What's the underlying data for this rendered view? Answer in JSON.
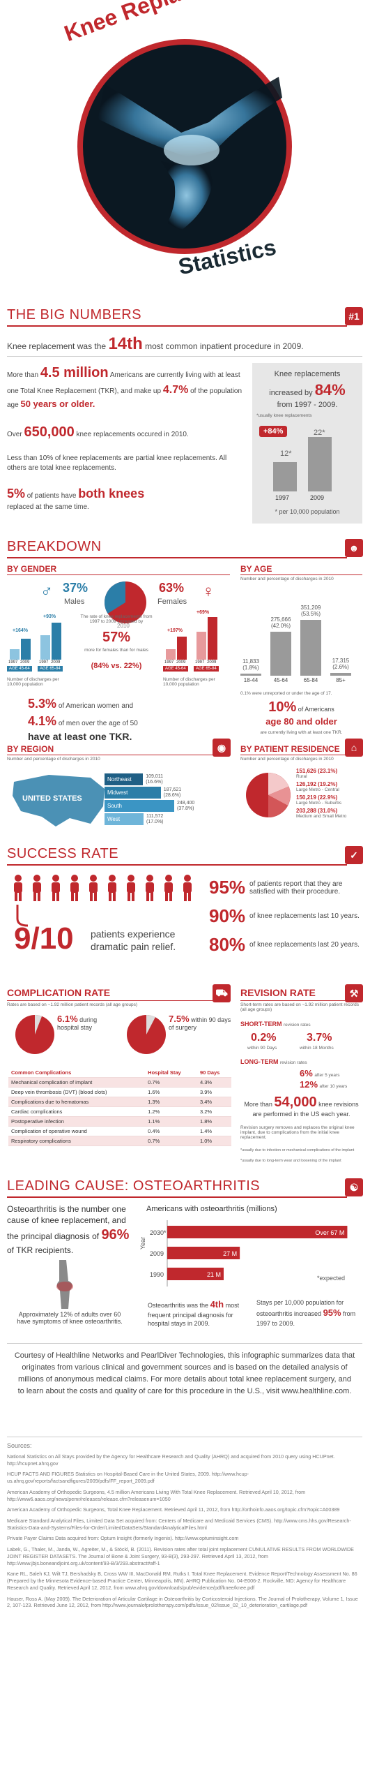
{
  "header": {
    "title_top": "Knee Replacement",
    "title_bottom": "Statistics"
  },
  "big_numbers": {
    "section_title": "THE BIG NUMBERS",
    "badge": "#1",
    "rank_pre": "Knee replacement was the",
    "rank_value": "14th",
    "rank_post": "most common inpatient procedure in 2009.",
    "more_than": "More than",
    "million": "4.5 million",
    "million_text": "Americans are currently living with at least one Total Knee Replacement (TKR), and make up",
    "pct": "4.7%",
    "pct_text": "of the population age",
    "age": "50 years or older.",
    "over": "Over",
    "over_value": "650,000",
    "over_text": "knee replacements occured in 2010.",
    "partial_text": "Less than 10% of knee replacements are partial knee replacements. All others are total knee replacements.",
    "both_pct": "5%",
    "both_mid": "of patients have",
    "both_big": "both knees",
    "both_post": "replaced at the same time.",
    "box_line1": "Knee replacements",
    "box_line2": "increased by",
    "box_pct": "84%",
    "box_line3": "from 1997 - 2009.",
    "box_note": "*usually knee replacements",
    "box_increase": "+84%",
    "box_val1": "12*",
    "box_val2": "22*",
    "box_year1": "1997",
    "box_year2": "2009",
    "box_caption": "* per 10,000 population"
  },
  "breakdown": {
    "section_title": "BREAKDOWN",
    "by_gender": "BY GENDER",
    "males_pct": "37%",
    "males": "Males",
    "females_pct": "63%",
    "females": "Females",
    "pie_year": "2010",
    "male_bars_pct1": "+164%",
    "male_bars_pct2": "+93%",
    "male_ages": [
      "AGE 45-64",
      "AGE 65-84"
    ],
    "male_years": [
      "1997",
      "2009",
      "1997",
      "2009"
    ],
    "female_bars_pct1": "+197%",
    "female_bars_pct2": "+69%",
    "female_ages": [
      "AGE 45-64",
      "AGE 65-84"
    ],
    "female_years": [
      "1997",
      "2009",
      "1997",
      "2009"
    ],
    "discharge_note": "Number of discharges per 10,000 population",
    "rate_text": "The rate of knee replacements from 1997 to 2009 increased by",
    "rate_pct": "57%",
    "rate_more": "more for females than for males",
    "rate_compare": "(84% vs. 22%)",
    "tkr_pct1": "5.3%",
    "tkr_text1": "of American women and",
    "tkr_pct2": "4.1%",
    "tkr_text2": "of men over the age of 50",
    "tkr_text3": "have at least one TKR.",
    "by_age": "BY AGE",
    "age_note": "Number and percentage of discharges in 2010",
    "age_bars": [
      {
        "label": "18-44",
        "value": "11,833",
        "pct": "(1.8%)",
        "h": 0.034
      },
      {
        "label": "45-64",
        "value": "275,666",
        "pct": "(42.0%)",
        "h": 0.785
      },
      {
        "label": "65-84",
        "value": "351,209",
        "pct": "(53.5%)",
        "h": 1.0
      },
      {
        "label": "85+",
        "value": "17,315",
        "pct": "(2.6%)",
        "h": 0.049
      }
    ],
    "age_footnote": "0.1% were unreported or under the age of 17.",
    "older_pct": "10%",
    "older_of": "of Americans",
    "older_big": "age 80 and older",
    "older_post": "are currently living with at least one TKR.",
    "by_region": "BY REGION",
    "region_note": "Number and percentage of discharges in 2010",
    "region_map": "UNITED STATES",
    "regions": [
      {
        "name": "Northeast",
        "value": "109,011",
        "pct": "(16.6%)",
        "w": 0.44
      },
      {
        "name": "Midwest",
        "value": "187,621",
        "pct": "(28.6%)",
        "w": 0.76
      },
      {
        "name": "South",
        "value": "248,400",
        "pct": "(37.8%)",
        "w": 1.0
      },
      {
        "name": "West",
        "value": "111,572",
        "pct": "(17.0%)",
        "w": 0.45
      }
    ],
    "by_residence": "BY PATIENT RESIDENCE",
    "residence_note": "Number and percentage of discharges in 2010",
    "residence": [
      {
        "value": "151,626 (23.1%)",
        "label": "Rural"
      },
      {
        "value": "126,192 (19.2%)",
        "label": "Large Metro - Central"
      },
      {
        "value": "150,219 (22.9%)",
        "label": "Large Metro - Suburbs"
      },
      {
        "value": "203,288 (31.0%)",
        "label": "Medium and Small Metro"
      }
    ]
  },
  "success": {
    "section_title": "SUCCESS RATE",
    "big": "9/10",
    "big_text": "patients experience dramatic pain relief.",
    "stats": [
      {
        "pct": "95%",
        "text": "of patients report that they are satisfied with their procedure."
      },
      {
        "pct": "90%",
        "text": "of knee replacements last 10 years."
      },
      {
        "pct": "80%",
        "text": "of knee replacements last 20 years."
      }
    ]
  },
  "complication": {
    "title": "COMPLICATION RATE",
    "note": "Rates are based on ~1.92 million patient records (all age groups)",
    "pie1_pct": "6.1%",
    "pie1_text": "during hospital stay",
    "pie2_pct": "7.5%",
    "pie2_text": "within 90 days of surgery",
    "table_headers": [
      "Common Complications",
      "Hospital Stay",
      "90 Days"
    ],
    "table_rows": [
      [
        "Mechanical complication of implant",
        "0.7%",
        "4.3%"
      ],
      [
        "Deep vein thrombosis (DVT) (blood clots)",
        "1.6%",
        "3.9%"
      ],
      [
        "Complications due to hematomas",
        "1.3%",
        "3.4%"
      ],
      [
        "Cardiac complications",
        "1.2%",
        "3.2%"
      ],
      [
        "Postoperative infection",
        "1.1%",
        "1.8%"
      ],
      [
        "Complication of operative wound",
        "0.4%",
        "1.4%"
      ],
      [
        "Respiratory complications",
        "0.7%",
        "1.0%"
      ]
    ]
  },
  "revision": {
    "title": "REVISION RATE",
    "note": "Short-term rates are based on ~1.92 million patient records (all age groups)",
    "short_title": "SHORT-TERM",
    "short_suffix": "revision rates",
    "short_a": "0.2%",
    "short_a_text": "within 90 Days",
    "short_b": "3.7%",
    "short_b_text": "within 18 Months",
    "long_title": "LONG-TERM",
    "long_suffix": "revision rates",
    "long_a": "6%",
    "long_a_text": "after 5 years",
    "long_b": "12%",
    "long_b_text": "after 10 years",
    "more_pre": "More than",
    "more_value": "54,000",
    "more_text": "knee revisions are performed in the US each year.",
    "desc": "Revision surgery removes and replaces the original knee implant, due to complications from the initial knee replacement.",
    "foot1": "*usually due to infection or mechanical complications of the implant",
    "foot2": "*usually due to long-term wear and loosening of the implant"
  },
  "osteo": {
    "section_title": "LEADING CAUSE: OSTEOARTHRITIS",
    "lead": "Osteoarthritis is the number one cause of knee replacement, and the principal diagnosis of",
    "lead_pct": "96%",
    "lead_post": "of TKR recipients.",
    "approx": "Approximately 12% of adults over 60 have symptoms of knee osteoarthritis.",
    "chart_title": "Americans with osteoarthritis (millions)",
    "ylabel": "Year",
    "expected": "*expected",
    "rank_pre": "Osteoarthritis was the",
    "rank": "4th",
    "rank_post": "most frequent principal diagnosis for hospital stays in 2009.",
    "stays_pre": "Stays per 10,000 population for osteoarthritis increased",
    "stays_pct": "95%",
    "stays_post": "from 1997 to 2009."
  },
  "chart_data": {
    "type": "bar",
    "title": "Americans with osteoarthritis (millions)",
    "categories": [
      "2030*",
      "2009",
      "1990"
    ],
    "labels": [
      "Over 67 M",
      "27 M",
      "21 M"
    ],
    "values": [
      67,
      27,
      21
    ],
    "ylabel": "Year",
    "xlim": [
      0,
      70
    ]
  },
  "footer": {
    "courtesy": "Courtesy of Healthline Networks and PearlDiver Technologies, this infographic summarizes data that originates from various clinical and government sources and is based on the detailed analysis of millions of anonymous medical claims. For more details about total knee replacement surgery, and to learn about the costs and quality of care for this procedure in the U.S., visit www.healthline.com.",
    "sources_title": "Sources:",
    "sources": [
      "National Statistics on All Stays provided by the Agency for Healthcare Research and Quality (AHRQ) and acquired from 2010 query using HCUPnet. http://hcupnet.ahrq.gov",
      "HCUP FACTS AND FIGURES Statistics on Hospital-Based Care in the United States, 2009. http://www.hcup-us.ahrq.gov/reports/factsandfigures/2009/pdfs/FF_report_2009.pdf",
      "American Academy of Orthopedic Surgeons, 4.5 million Americans Living With Total Knee Replacement. Retrieved April 10, 2012, from http://www6.aaos.org/news/pemr/releases/release.cfm?releasenum=1050",
      "American Academy of Orthopedic Surgeons, Total Knee Replacement. Retrieved April 11, 2012, from http://orthoinfo.aaos.org/topic.cfm?topic=A00389",
      "Medicare Standard Analytical Files, Limited Data Set acquired from: Centers of Medicare and Medicaid Services (CMS). http://www.cms.hhs.gov/Research-Statistics-Data-and-Systems/Files-for-Order/LimitedDataSets/StandardAnalyticalFiles.html",
      "Private Payer Claims Data acquired from: Optum Insight (formerly Ingenix). http://www.optuminsight.com",
      "Labek, G., Thaler, M., Janda, W., Agreiter, M., & Stöckl, B. (2011). Revision rates after total joint replacement CUMULATIVE RESULTS FROM WORLDWIDE JOINT REGISTER DATASETS. The Journal of Bone & Joint Surgery, 93-B(3), 293-297. Retrieved April 13, 2012, from http://www.jbjs.boneandjoint.org.uk/content/93-B/3/293.abstract#aff-1",
      "Kane RL, Saleh KJ, Wilt TJ, Bershadsky B, Cross WW III, MacDonald RM, Rutks I. Total Knee Replacement. Evidence Report/Technology Assessment No. 86 (Prepared by the Minnesota Evidence-based Practice Center, Minneapolis, MN). AHRQ Publication No. 04-E006-2. Rockville, MD: Agency for Healthcare Research and Quality. Retrieved April 12, 2012, from www.ahrq.gov/downloads/pub/evidence/pdf/knee/knee.pdf",
      "Hauser, Ross A. (May 2009). The Deterioration of Articular Cartilage in Osteoarthritis by Corticosteroid Injections. The Journal of Prolotherapy, Volume 1, Issue 2, 107-123. Retrieved June 12, 2012, from http://www.journalofprolotherapy.com/pdfs/issue_02/issue_02_10_deterioration_cartilage.pdf"
    ]
  }
}
